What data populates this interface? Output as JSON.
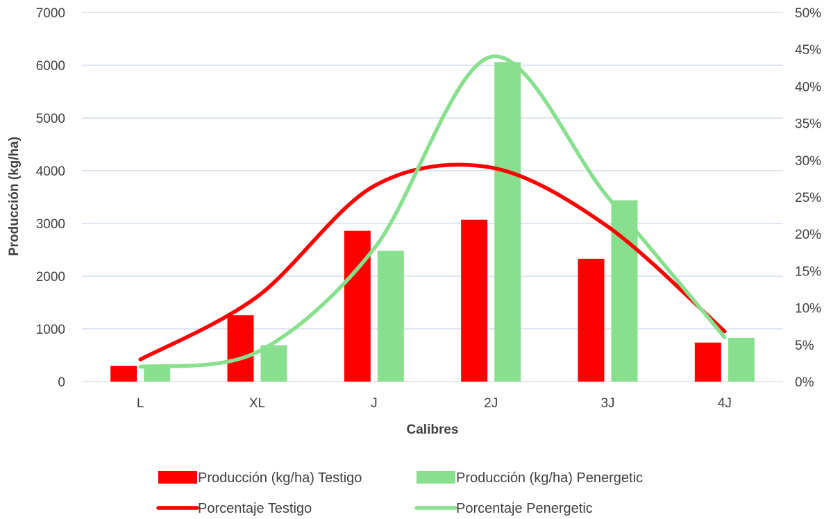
{
  "chart_data": {
    "type": "bar",
    "categories": [
      "L",
      "XL",
      "J",
      "2J",
      "3J",
      "4J"
    ],
    "xlabel": "Calibres",
    "ylabel": "Producción (kg/ha)",
    "ylim": [
      0,
      7000
    ],
    "y_ticks": [
      "0",
      "1000",
      "2000",
      "3000",
      "4000",
      "5000",
      "6000",
      "7000"
    ],
    "y2lim": [
      0,
      0.5
    ],
    "y2_ticks": [
      "0%",
      "5%",
      "10%",
      "15%",
      "20%",
      "25%",
      "30%",
      "35%",
      "40%",
      "45%",
      "50%"
    ],
    "grid": true,
    "legend_position": "bottom",
    "bar_series": [
      {
        "name": "Producción (kg/ha) Testigo",
        "color": "#ff0000",
        "values": [
          300,
          1260,
          2860,
          3070,
          2330,
          740
        ]
      },
      {
        "name": "Producción (kg/ha) Penergetic",
        "color": "#88e08f",
        "values": [
          270,
          690,
          2480,
          6060,
          3440,
          830
        ]
      }
    ],
    "line_series": [
      {
        "name": "Porcentaje Testigo",
        "color": "#ff0000",
        "axis": "secondary",
        "smooth": true,
        "values": [
          0.03,
          0.115,
          0.265,
          0.29,
          0.21,
          0.068
        ]
      },
      {
        "name": "Porcentaje Penergetic",
        "color": "#88e08f",
        "axis": "secondary",
        "smooth": true,
        "values": [
          0.02,
          0.04,
          0.18,
          0.44,
          0.25,
          0.06
        ]
      }
    ]
  }
}
